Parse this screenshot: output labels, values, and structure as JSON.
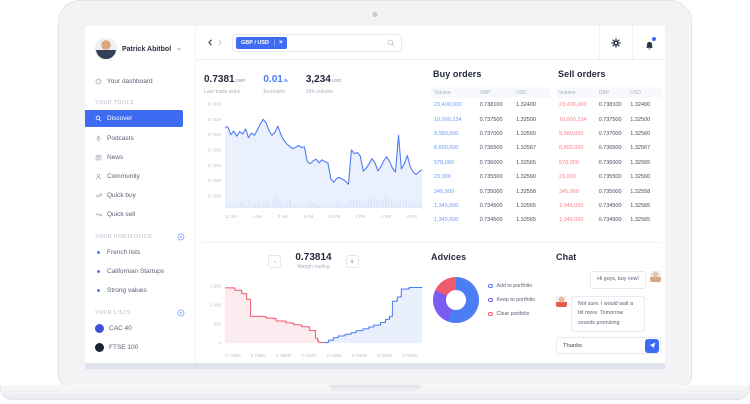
{
  "sidebar": {
    "profile": {
      "name": "Patrick Abitbol"
    },
    "dashboard_label": "Your dashboard",
    "sections": [
      {
        "title": "Your tools",
        "has_add": false,
        "items": [
          {
            "label": "Discover",
            "icon": "search",
            "active": true
          },
          {
            "label": "Podcasts",
            "icon": "microphone"
          },
          {
            "label": "News",
            "icon": "newspaper"
          },
          {
            "label": "Community",
            "icon": "person"
          },
          {
            "label": "Quick buy",
            "icon": "trend-up"
          },
          {
            "label": "Quick sell",
            "icon": "trend-down"
          }
        ]
      },
      {
        "title": "Your portfolios",
        "has_add": true,
        "items": [
          {
            "label": "French lists"
          },
          {
            "label": "Californian Startups"
          },
          {
            "label": "Strong values"
          }
        ]
      },
      {
        "title": "Your lists",
        "has_add": true,
        "items": [
          {
            "label": "CAC 40",
            "dot_color": "#3f51d8"
          },
          {
            "label": "FTSE 100",
            "dot_color": "#1b2436"
          }
        ]
      }
    ]
  },
  "topbar": {
    "search_tag": "GBP / USD",
    "tag_close": "×",
    "accent_color": "#3d6cf2"
  },
  "stats": [
    {
      "value": "0.7381",
      "unit": "GBP",
      "label": "Last trade price",
      "accent": false
    },
    {
      "value": "0.01",
      "unit": "%",
      "label": "Evolution",
      "accent": true
    },
    {
      "value": "3,234",
      "unit": "USD",
      "label": "24h volume",
      "accent": false
    }
  ],
  "orders": {
    "buy": {
      "title": "Buy orders",
      "headers": [
        "Volume",
        "GBP",
        "USD"
      ],
      "volume_color": "#6d9bf7",
      "rows": [
        [
          "23,400,000",
          "0.738100",
          "1.32400"
        ],
        [
          "10,000,234",
          "0.737500",
          "1.32500"
        ],
        [
          "9,989,000",
          "0.737000",
          "1.32560"
        ],
        [
          "8,800,000",
          "0.736500",
          "1.32567"
        ],
        [
          "578,000",
          "0.736000",
          "1.32565"
        ],
        [
          "23,000",
          "0.735500",
          "1.32560"
        ],
        [
          "345,900",
          "0.735000",
          "1.32558"
        ],
        [
          "1,345,000",
          "0.734500",
          "1.32565"
        ],
        [
          "1,345,000",
          "0.734500",
          "1.32565"
        ]
      ]
    },
    "sell": {
      "title": "Sell orders",
      "headers": [
        "Volume",
        "GBP",
        "USD"
      ],
      "volume_color": "#f8818c",
      "rows": [
        [
          "23,400,000",
          "0.738100",
          "1.32400"
        ],
        [
          "10,000,234",
          "0.737500",
          "1.32500"
        ],
        [
          "9,989,000",
          "0.737000",
          "1.32560"
        ],
        [
          "8,800,000",
          "0.736500",
          "1.32567"
        ],
        [
          "578,000",
          "0.736000",
          "1.32565"
        ],
        [
          "23,000",
          "0.735500",
          "1.32560"
        ],
        [
          "345,900",
          "0.735000",
          "1.32558"
        ],
        [
          "1,345,000",
          "0.734500",
          "1.32565"
        ],
        [
          "1,345,000",
          "0.734500",
          "1.32565"
        ]
      ]
    }
  },
  "margin": {
    "value": "0.73814",
    "label": "Margin trading",
    "decrease_label": "-",
    "increase_label": "+"
  },
  "advices": {
    "title": "Advices",
    "legend": [
      {
        "label": "Add to portfolio",
        "color": "#4d7cf3"
      },
      {
        "label": "Keep to portfolio",
        "color": "#7a5cf0"
      },
      {
        "label": "Clear portfolio",
        "color": "#ef5b6e"
      }
    ]
  },
  "chat": {
    "title": "Chat",
    "messages": [
      {
        "text": "Hi guys, buy now!",
        "side": "right",
        "avatar": {
          "skin": "#eec5a6",
          "shirt": "#d3aa8b"
        }
      },
      {
        "text": "Not sure. I would wait a bit more. Tomorrow sounds promising",
        "side": "left",
        "avatar": {
          "skin": "#eab88f",
          "shirt": "#e05c4f"
        }
      }
    ],
    "input_value": "Thanks",
    "send_icon": "paper-plane"
  },
  "chart_data": [
    {
      "type": "line",
      "name": "price-history",
      "ylabels": [
        "0.7410",
        "0.7405",
        "0.7400",
        "0.7395",
        "0.7390",
        "0.7385",
        "0.7380"
      ],
      "ylim": [
        0.738,
        0.741
      ],
      "xticks": [
        "11 AM",
        "1 AM",
        "3 AM",
        "5 AM",
        "12 PM",
        "2 PM",
        "4 PM",
        "6 PM"
      ],
      "line_color": "#4d7cf3",
      "fill_color": "#e9effc",
      "volume_color": "#dce6fa",
      "grid": true,
      "prices": [
        0.74025,
        0.74025,
        0.74,
        0.74012,
        0.73995,
        0.7401,
        0.74002,
        0.74018,
        0.7399,
        0.74005,
        0.73998,
        0.74015,
        0.74035,
        0.7405,
        0.74038,
        0.74012,
        0.73998,
        0.74008,
        0.74028,
        0.74,
        0.73982,
        0.7397,
        0.73962,
        0.73955,
        0.73958,
        0.73965,
        0.73958,
        0.7396,
        0.73912,
        0.73905,
        0.73915,
        0.7392,
        0.73908,
        0.73918,
        0.73912,
        0.73908,
        0.73855,
        0.73845,
        0.73858,
        0.7386,
        0.73855,
        0.73848,
        0.73838,
        0.7395,
        0.73938,
        0.73942,
        0.7393,
        0.73882,
        0.7389,
        0.73905,
        0.73922,
        0.73908,
        0.73882,
        0.73895,
        0.73915,
        0.73928,
        0.73912,
        0.7389,
        0.73878,
        0.73998,
        0.73888,
        0.73905,
        0.73932,
        0.73895,
        0.73878,
        0.7387,
        0.7388,
        0.73885
      ],
      "volumes": [
        3,
        2,
        4,
        2,
        3,
        5,
        3,
        2,
        6,
        3,
        4,
        7,
        3,
        5,
        8,
        4,
        6,
        9,
        7,
        5,
        3,
        4,
        6,
        3,
        2,
        3,
        4,
        2,
        3,
        5,
        4,
        3,
        2,
        1,
        1,
        2,
        3,
        4,
        5,
        6,
        4,
        3,
        5,
        7,
        6,
        8,
        5,
        4,
        6,
        8,
        7,
        9,
        6,
        5,
        7,
        9,
        8,
        6,
        4,
        5,
        7,
        5,
        6,
        4,
        5,
        3,
        4,
        3
      ]
    },
    {
      "type": "area-step",
      "name": "market-depth",
      "ylabels": [
        "1,500",
        "1,000",
        "500",
        "0"
      ],
      "ylim": [
        0,
        1500
      ],
      "xticks": [
        "0.72500",
        "0.73000",
        "0.73500",
        "0.74000",
        "0.74500",
        "0.75000",
        "0.75500",
        "0.76000"
      ],
      "grid": true,
      "series": [
        {
          "name": "bids",
          "color": "#ef5b6e",
          "fill": "#fdecef",
          "points": [
            [
              0,
              1450
            ],
            [
              0.045,
              1445
            ],
            [
              0.05,
              1390
            ],
            [
              0.08,
              1385
            ],
            [
              0.085,
              1300
            ],
            [
              0.105,
              1295
            ],
            [
              0.11,
              1150
            ],
            [
              0.125,
              1145
            ],
            [
              0.13,
              700
            ],
            [
              0.2,
              690
            ],
            [
              0.21,
              655
            ],
            [
              0.25,
              640
            ],
            [
              0.26,
              580
            ],
            [
              0.3,
              570
            ],
            [
              0.31,
              530
            ],
            [
              0.34,
              520
            ],
            [
              0.35,
              480
            ],
            [
              0.38,
              470
            ],
            [
              0.39,
              430
            ],
            [
              0.42,
              420
            ],
            [
              0.43,
              330
            ],
            [
              0.455,
              320
            ],
            [
              0.46,
              130
            ],
            [
              0.47,
              60
            ],
            [
              0.475,
              15
            ],
            [
              0.5,
              10
            ]
          ]
        },
        {
          "name": "asks",
          "color": "#4d7cf3",
          "fill": "#e9effc",
          "points": [
            [
              0.5,
              10
            ],
            [
              0.52,
              15
            ],
            [
              0.525,
              70
            ],
            [
              0.545,
              75
            ],
            [
              0.55,
              140
            ],
            [
              0.57,
              145
            ],
            [
              0.575,
              185
            ],
            [
              0.6,
              190
            ],
            [
              0.61,
              230
            ],
            [
              0.63,
              235
            ],
            [
              0.64,
              270
            ],
            [
              0.66,
              275
            ],
            [
              0.665,
              320
            ],
            [
              0.69,
              325
            ],
            [
              0.7,
              370
            ],
            [
              0.72,
              375
            ],
            [
              0.73,
              420
            ],
            [
              0.75,
              425
            ],
            [
              0.755,
              470
            ],
            [
              0.78,
              475
            ],
            [
              0.79,
              540
            ],
            [
              0.81,
              545
            ],
            [
              0.815,
              620
            ],
            [
              0.83,
              625
            ],
            [
              0.835,
              700
            ],
            [
              0.845,
              705
            ],
            [
              0.85,
              1100
            ],
            [
              0.87,
              1110
            ],
            [
              0.875,
              1210
            ],
            [
              0.89,
              1215
            ],
            [
              0.895,
              1420
            ],
            [
              0.93,
              1430
            ],
            [
              0.935,
              1460
            ],
            [
              1,
              1465
            ]
          ]
        }
      ]
    },
    {
      "type": "pie",
      "name": "advices-donut",
      "segments": [
        {
          "label": "Add to portfolio",
          "value": 56,
          "color": "#4d7cf3"
        },
        {
          "label": "Keep to portfolio",
          "value": 26,
          "color": "#7a5cf0"
        },
        {
          "label": "Clear portfolio",
          "value": 18,
          "color": "#ef5b6e"
        }
      ]
    }
  ]
}
